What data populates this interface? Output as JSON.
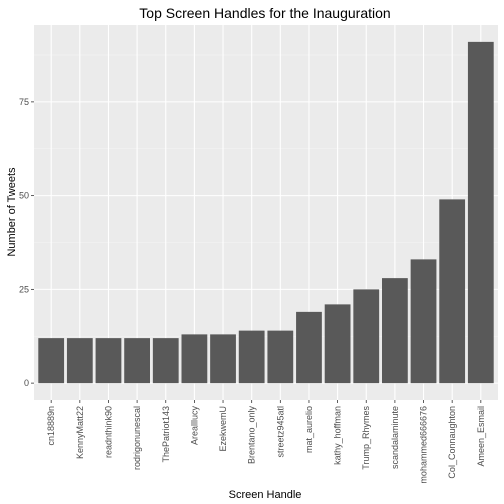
{
  "chart_data": {
    "type": "bar",
    "title": "Top Screen Handles for the Inauguration",
    "xlabel": "Screen Handle",
    "ylabel": "Number of Tweets",
    "categories": [
      "cn18889n",
      "KennyMatt22",
      "readnthink90",
      "rodrigonunescal",
      "ThePatriot143",
      "Arealllucy",
      "EzekwemU",
      "Brentano_only",
      "streetz945atl",
      "mat_aurelio",
      "kathy_hoffman",
      "Trump_Rhymes",
      "scandalaminute",
      "mohammed666676",
      "Col_Connaughton",
      "Ameen_Esmail"
    ],
    "values": [
      12,
      12,
      12,
      12,
      12,
      13,
      13,
      14,
      14,
      19,
      21,
      25,
      28,
      33,
      49,
      91
    ],
    "ylim": [
      -4.5,
      95.5
    ],
    "yticks": [
      0,
      25,
      50,
      75
    ],
    "ytick_labels": [
      "0",
      "25",
      "50",
      "75"
    ],
    "grid": true,
    "legend": "none",
    "colors": {
      "panel_background": "#ebebeb",
      "grid_major": "#ffffff",
      "grid_minor": "#f5f5f5",
      "bar_fill": "#595959"
    }
  }
}
